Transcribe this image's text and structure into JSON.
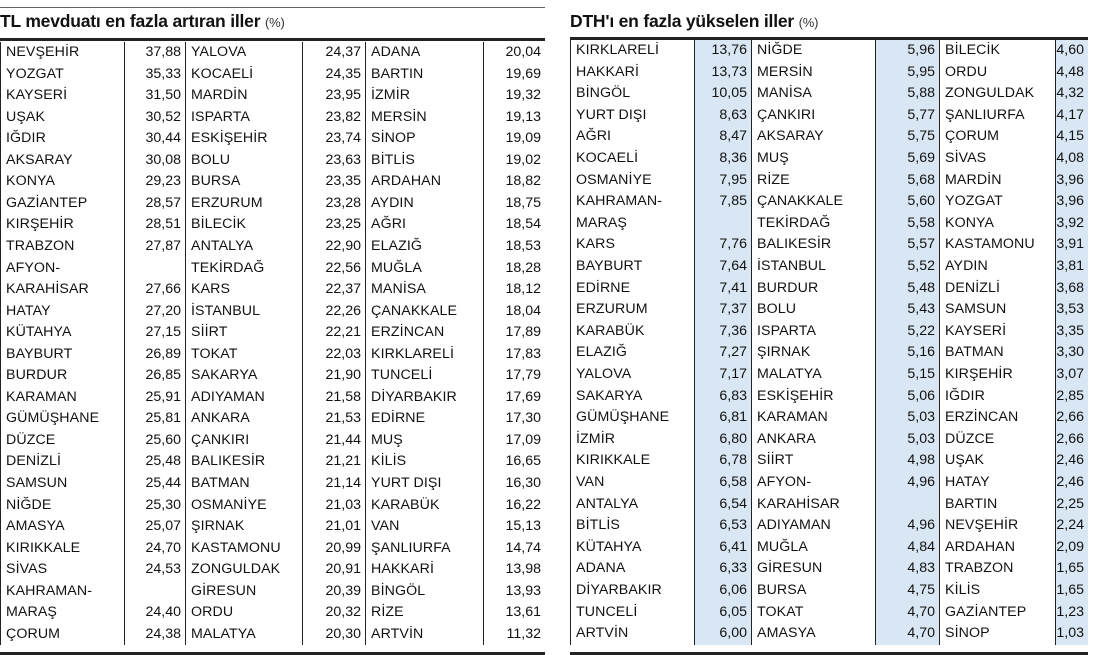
{
  "left": {
    "title": "TL mevduatı en fazla artıran iller",
    "unit": "(%)",
    "columns": [
      [
        [
          "NEVŞEHİR",
          "37,88"
        ],
        [
          "YOZGAT",
          "35,33"
        ],
        [
          "KAYSERİ",
          "31,50"
        ],
        [
          "UŞAK",
          "30,52"
        ],
        [
          "IĞDIR",
          "30,44"
        ],
        [
          "AKSARAY",
          "30,08"
        ],
        [
          "KONYA",
          "29,23"
        ],
        [
          "GAZİANTEP",
          "28,57"
        ],
        [
          "KIRŞEHİR",
          "28,51"
        ],
        [
          "TRABZON",
          "27,87"
        ],
        [
          "AFYON-",
          ""
        ],
        [
          "KARAHİSAR",
          "27,66"
        ],
        [
          "HATAY",
          "27,20"
        ],
        [
          "KÜTAHYA",
          "27,15"
        ],
        [
          "BAYBURT",
          "26,89"
        ],
        [
          "BURDUR",
          "26,85"
        ],
        [
          "KARAMAN",
          "25,91"
        ],
        [
          "GÜMÜŞHANE",
          "25,81"
        ],
        [
          "DÜZCE",
          "25,60"
        ],
        [
          "DENİZLİ",
          "25,48"
        ],
        [
          "SAMSUN",
          "25,44"
        ],
        [
          "NİĞDE",
          "25,30"
        ],
        [
          "AMASYA",
          "25,07"
        ],
        [
          "KIRIKKALE",
          "24,70"
        ],
        [
          "SİVAS",
          "24,53"
        ],
        [
          "KAHRAMAN-",
          ""
        ],
        [
          "MARAŞ",
          "24,40"
        ],
        [
          "ÇORUM",
          "24,38"
        ]
      ],
      [
        [
          "YALOVA",
          "24,37"
        ],
        [
          "KOCAELİ",
          "24,35"
        ],
        [
          "MARDİN",
          "23,95"
        ],
        [
          "ISPARTA",
          "23,82"
        ],
        [
          "ESKİŞEHİR",
          "23,74"
        ],
        [
          "BOLU",
          "23,63"
        ],
        [
          "BURSA",
          "23,35"
        ],
        [
          "ERZURUM",
          "23,28"
        ],
        [
          "BİLECİK",
          "23,25"
        ],
        [
          "ANTALYA",
          "22,90"
        ],
        [
          "TEKİRDAĞ",
          "22,56"
        ],
        [
          "KARS",
          "22,37"
        ],
        [
          "İSTANBUL",
          "22,26"
        ],
        [
          "SİİRT",
          "22,21"
        ],
        [
          "TOKAT",
          "22,03"
        ],
        [
          "SAKARYA",
          "21,90"
        ],
        [
          "ADIYAMAN",
          "21,58"
        ],
        [
          "ANKARA",
          "21,53"
        ],
        [
          "ÇANKIRI",
          "21,44"
        ],
        [
          "BALIKESİR",
          "21,21"
        ],
        [
          "BATMAN",
          "21,14"
        ],
        [
          "OSMANİYE",
          "21,03"
        ],
        [
          "ŞIRNAK",
          "21,01"
        ],
        [
          "KASTAMONU",
          "20,99"
        ],
        [
          "ZONGULDAK",
          "20,91"
        ],
        [
          "GİRESUN",
          "20,39"
        ],
        [
          "ORDU",
          "20,32"
        ],
        [
          "MALATYA",
          "20,30"
        ]
      ],
      [
        [
          "ADANA",
          "20,04"
        ],
        [
          "BARTIN",
          "19,69"
        ],
        [
          "İZMİR",
          "19,32"
        ],
        [
          "MERSİN",
          "19,13"
        ],
        [
          "SİNOP",
          "19,09"
        ],
        [
          "BİTLİS",
          "19,02"
        ],
        [
          "ARDAHAN",
          "18,82"
        ],
        [
          "AYDIN",
          "18,75"
        ],
        [
          "AĞRI",
          "18,54"
        ],
        [
          "ELAZIĞ",
          "18,53"
        ],
        [
          "MUĞLA",
          "18,28"
        ],
        [
          "MANİSA",
          "18,12"
        ],
        [
          "ÇANAKKALE",
          "18,04"
        ],
        [
          "ERZİNCAN",
          "17,89"
        ],
        [
          "KIRKLARELİ",
          "17,83"
        ],
        [
          "TUNCELİ",
          "17,79"
        ],
        [
          "DİYARBAKIR",
          "17,69"
        ],
        [
          "EDİRNE",
          "17,30"
        ],
        [
          "MUŞ",
          "17,09"
        ],
        [
          "KİLİS",
          "16,65"
        ],
        [
          "YURT DIŞI",
          "16,30"
        ],
        [
          "KARABÜK",
          "16,22"
        ],
        [
          "VAN",
          "15,13"
        ],
        [
          "ŞANLIURFA",
          "14,74"
        ],
        [
          "HAKKARİ",
          "13,98"
        ],
        [
          "BİNGÖL",
          "13,93"
        ],
        [
          "RİZE",
          "13,61"
        ],
        [
          "ARTVİN",
          "11,32"
        ]
      ]
    ]
  },
  "right": {
    "title": "DTH'ı en fazla yükselen iller",
    "unit": "(%)",
    "columns": [
      [
        [
          "KIRKLARELİ",
          "13,76"
        ],
        [
          "HAKKARİ",
          "13,73"
        ],
        [
          "BİNGÖL",
          "10,05"
        ],
        [
          "YURT DIŞI",
          "8,63"
        ],
        [
          "AĞRI",
          "8,47"
        ],
        [
          "KOCAELİ",
          "8,36"
        ],
        [
          "OSMANİYE",
          "7,95"
        ],
        [
          "KAHRAMAN-",
          "7,85"
        ],
        [
          "MARAŞ",
          ""
        ],
        [
          "KARS",
          "7,76"
        ],
        [
          "BAYBURT",
          "7,64"
        ],
        [
          "EDİRNE",
          "7,41"
        ],
        [
          "ERZURUM",
          "7,37"
        ],
        [
          "KARABÜK",
          "7,36"
        ],
        [
          "ELAZIĞ",
          "7,27"
        ],
        [
          "YALOVA",
          "7,17"
        ],
        [
          "SAKARYA",
          "6,83"
        ],
        [
          "GÜMÜŞHANE",
          "6,81"
        ],
        [
          "İZMİR",
          "6,80"
        ],
        [
          "KIRIKKALE",
          "6,78"
        ],
        [
          "VAN",
          "6,58"
        ],
        [
          "ANTALYA",
          "6,54"
        ],
        [
          "BİTLİS",
          "6,53"
        ],
        [
          "KÜTAHYA",
          "6,41"
        ],
        [
          "ADANA",
          "6,33"
        ],
        [
          "DİYARBAKIR",
          "6,06"
        ],
        [
          "TUNCELİ",
          "6,05"
        ],
        [
          "ARTVİN",
          "6,00"
        ]
      ],
      [
        [
          "NİĞDE",
          "5,96"
        ],
        [
          "MERSİN",
          "5,95"
        ],
        [
          "MANİSA",
          "5,88"
        ],
        [
          "ÇANKIRI",
          "5,77"
        ],
        [
          "AKSARAY",
          "5,75"
        ],
        [
          "MUŞ",
          "5,69"
        ],
        [
          "RİZE",
          "5,68"
        ],
        [
          "ÇANAKKALE",
          "5,60"
        ],
        [
          "TEKİRDAĞ",
          "5,58"
        ],
        [
          "BALIKESİR",
          "5,57"
        ],
        [
          "İSTANBUL",
          "5,52"
        ],
        [
          "BURDUR",
          "5,48"
        ],
        [
          "BOLU",
          "5,43"
        ],
        [
          "ISPARTA",
          "5,22"
        ],
        [
          "ŞIRNAK",
          "5,16"
        ],
        [
          "MALATYA",
          "5,15"
        ],
        [
          "ESKİŞEHİR",
          "5,06"
        ],
        [
          "KARAMAN",
          "5,03"
        ],
        [
          "ANKARA",
          "5,03"
        ],
        [
          "SİİRT",
          "4,98"
        ],
        [
          "AFYON-",
          "4,96"
        ],
        [
          "KARAHİSAR",
          ""
        ],
        [
          "ADIYAMAN",
          "4,96"
        ],
        [
          "MUĞLA",
          "4,84"
        ],
        [
          "GİRESUN",
          "4,83"
        ],
        [
          "BURSA",
          "4,75"
        ],
        [
          "TOKAT",
          "4,70"
        ],
        [
          "AMASYA",
          "4,70"
        ]
      ],
      [
        [
          "BİLECİK",
          "4,60"
        ],
        [
          "ORDU",
          "4,48"
        ],
        [
          "ZONGULDAK",
          "4,32"
        ],
        [
          "ŞANLIURFA",
          "4,17"
        ],
        [
          "ÇORUM",
          "4,15"
        ],
        [
          "SİVAS",
          "4,08"
        ],
        [
          "MARDİN",
          "3,96"
        ],
        [
          "YOZGAT",
          "3,96"
        ],
        [
          "KONYA",
          "3,92"
        ],
        [
          "KASTAMONU",
          "3,91"
        ],
        [
          "AYDIN",
          "3,81"
        ],
        [
          "DENİZLİ",
          "3,68"
        ],
        [
          "SAMSUN",
          "3,53"
        ],
        [
          "KAYSERİ",
          "3,35"
        ],
        [
          "BATMAN",
          "3,30"
        ],
        [
          "KIRŞEHİR",
          "3,07"
        ],
        [
          "IĞDIR",
          "2,85"
        ],
        [
          "ERZİNCAN",
          "2,66"
        ],
        [
          "DÜZCE",
          "2,66"
        ],
        [
          "UŞAK",
          "2,46"
        ],
        [
          "HATAY",
          "2,46"
        ],
        [
          "BARTIN",
          "2,25"
        ],
        [
          "NEVŞEHİR",
          "2,24"
        ],
        [
          "ARDAHAN",
          "2,09"
        ],
        [
          "TRABZON",
          "1,65"
        ],
        [
          "KİLİS",
          "1,65"
        ],
        [
          "GAZİANTEP",
          "1,23"
        ],
        [
          "SİNOP",
          "1,03"
        ]
      ]
    ],
    "shade_color": "#d8e7f3"
  }
}
